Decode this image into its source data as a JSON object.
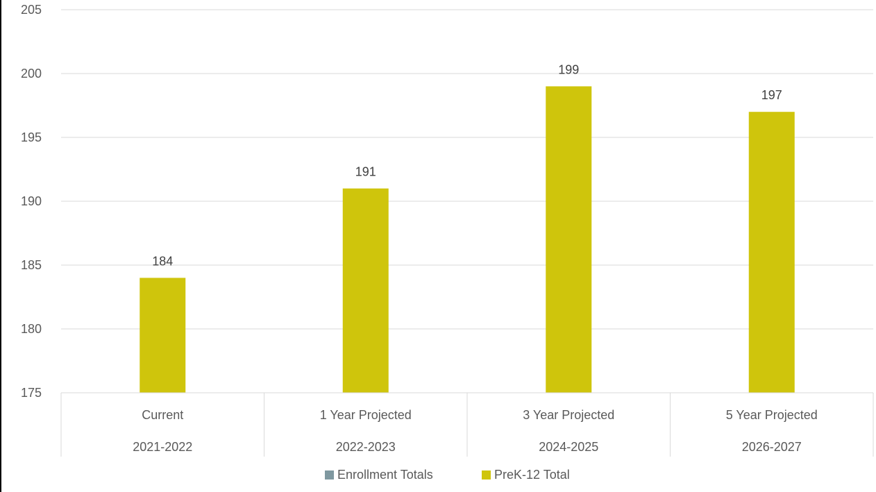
{
  "chart_data": {
    "type": "bar",
    "title": "",
    "xlabel": "",
    "ylabel": "",
    "ylim": [
      175,
      205
    ],
    "yticks": [
      175,
      180,
      185,
      190,
      195,
      200,
      205
    ],
    "grid": true,
    "legend_position": "bottom",
    "categories": [
      {
        "level1": "Current",
        "level2": "2021-2022"
      },
      {
        "level1": "1 Year Projected",
        "level2": "2022-2023"
      },
      {
        "level1": "3 Year Projected",
        "level2": "2024-2025"
      },
      {
        "level1": "5 Year Projected",
        "level2": "2026-2027"
      }
    ],
    "series": [
      {
        "name": "Enrollment Totals",
        "color": "#7f98a0",
        "values": [
          null,
          null,
          null,
          null
        ]
      },
      {
        "name": "PreK-12 Total",
        "color": "#cfc50c",
        "values": [
          184,
          191,
          199,
          197
        ]
      }
    ],
    "data_labels": [
      "184",
      "191",
      "199",
      "197"
    ]
  }
}
